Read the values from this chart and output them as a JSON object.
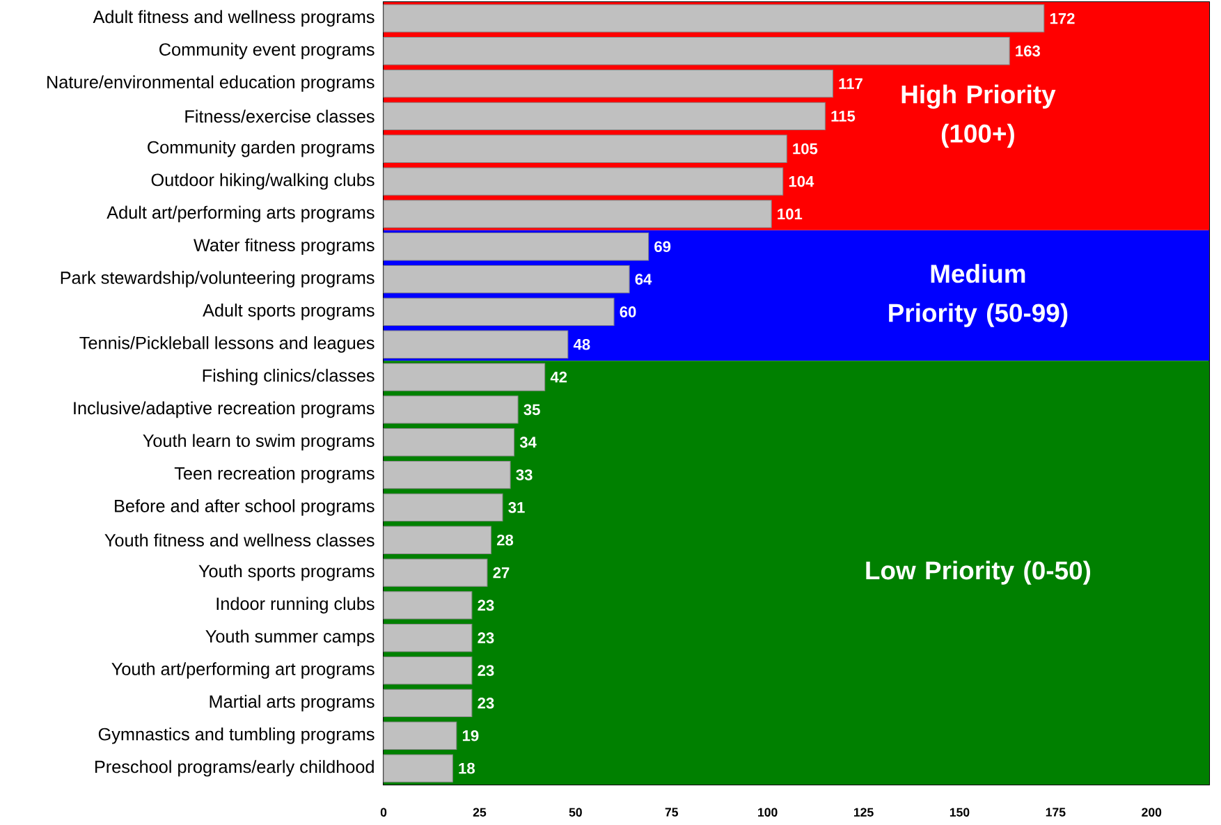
{
  "chart_data": {
    "type": "bar",
    "orientation": "horizontal",
    "color": "#c0c0c0",
    "data_labels": true,
    "categories": [
      "Adult fitness and wellness programs",
      "Community event programs",
      "Nature/environmental education programs",
      "Fitness/exercise classes",
      "Community garden programs",
      "Outdoor hiking/walking clubs",
      "Adult art/performing arts programs",
      "Water fitness programs",
      "Park stewardship/volunteering programs",
      "Adult sports programs",
      "Tennis/Pickleball lessons and leagues",
      "Fishing clinics/classes",
      "Inclusive/adaptive recreation programs",
      "Youth learn to swim programs",
      "Teen recreation programs",
      "Before and after school programs",
      "Youth fitness and wellness classes",
      "Youth sports programs",
      "Indoor running clubs",
      "Youth summer camps",
      "Youth art/performing art programs",
      "Martial arts programs",
      "Gymnastics and tumbling programs",
      "Preschool programs/early childhood"
    ],
    "values": [
      172,
      163,
      117,
      115,
      105,
      104,
      101,
      69,
      64,
      60,
      48,
      42,
      35,
      34,
      33,
      31,
      28,
      27,
      23,
      23,
      23,
      23,
      19,
      18
    ],
    "xlim": [
      0,
      215
    ],
    "xticks": [
      0,
      25,
      50,
      75,
      100,
      125,
      150,
      175,
      200
    ],
    "bands": [
      {
        "axis": "y",
        "from": "Adult fitness and wellness programs",
        "to": "Adult art/performing arts programs",
        "label": "High Priority (100+)",
        "color": "#ff0000"
      },
      {
        "axis": "y",
        "from": "Water fitness programs",
        "to": "Tennis/Pickleball lessons and leagues",
        "label": "Medium Priority (50-99)",
        "color": "#0000ff"
      },
      {
        "axis": "y",
        "from": "Fishing clinics/classes",
        "to": "Preschool programs/early childhood",
        "label": "Low Priority (0-50)",
        "color": "#008000"
      }
    ]
  }
}
